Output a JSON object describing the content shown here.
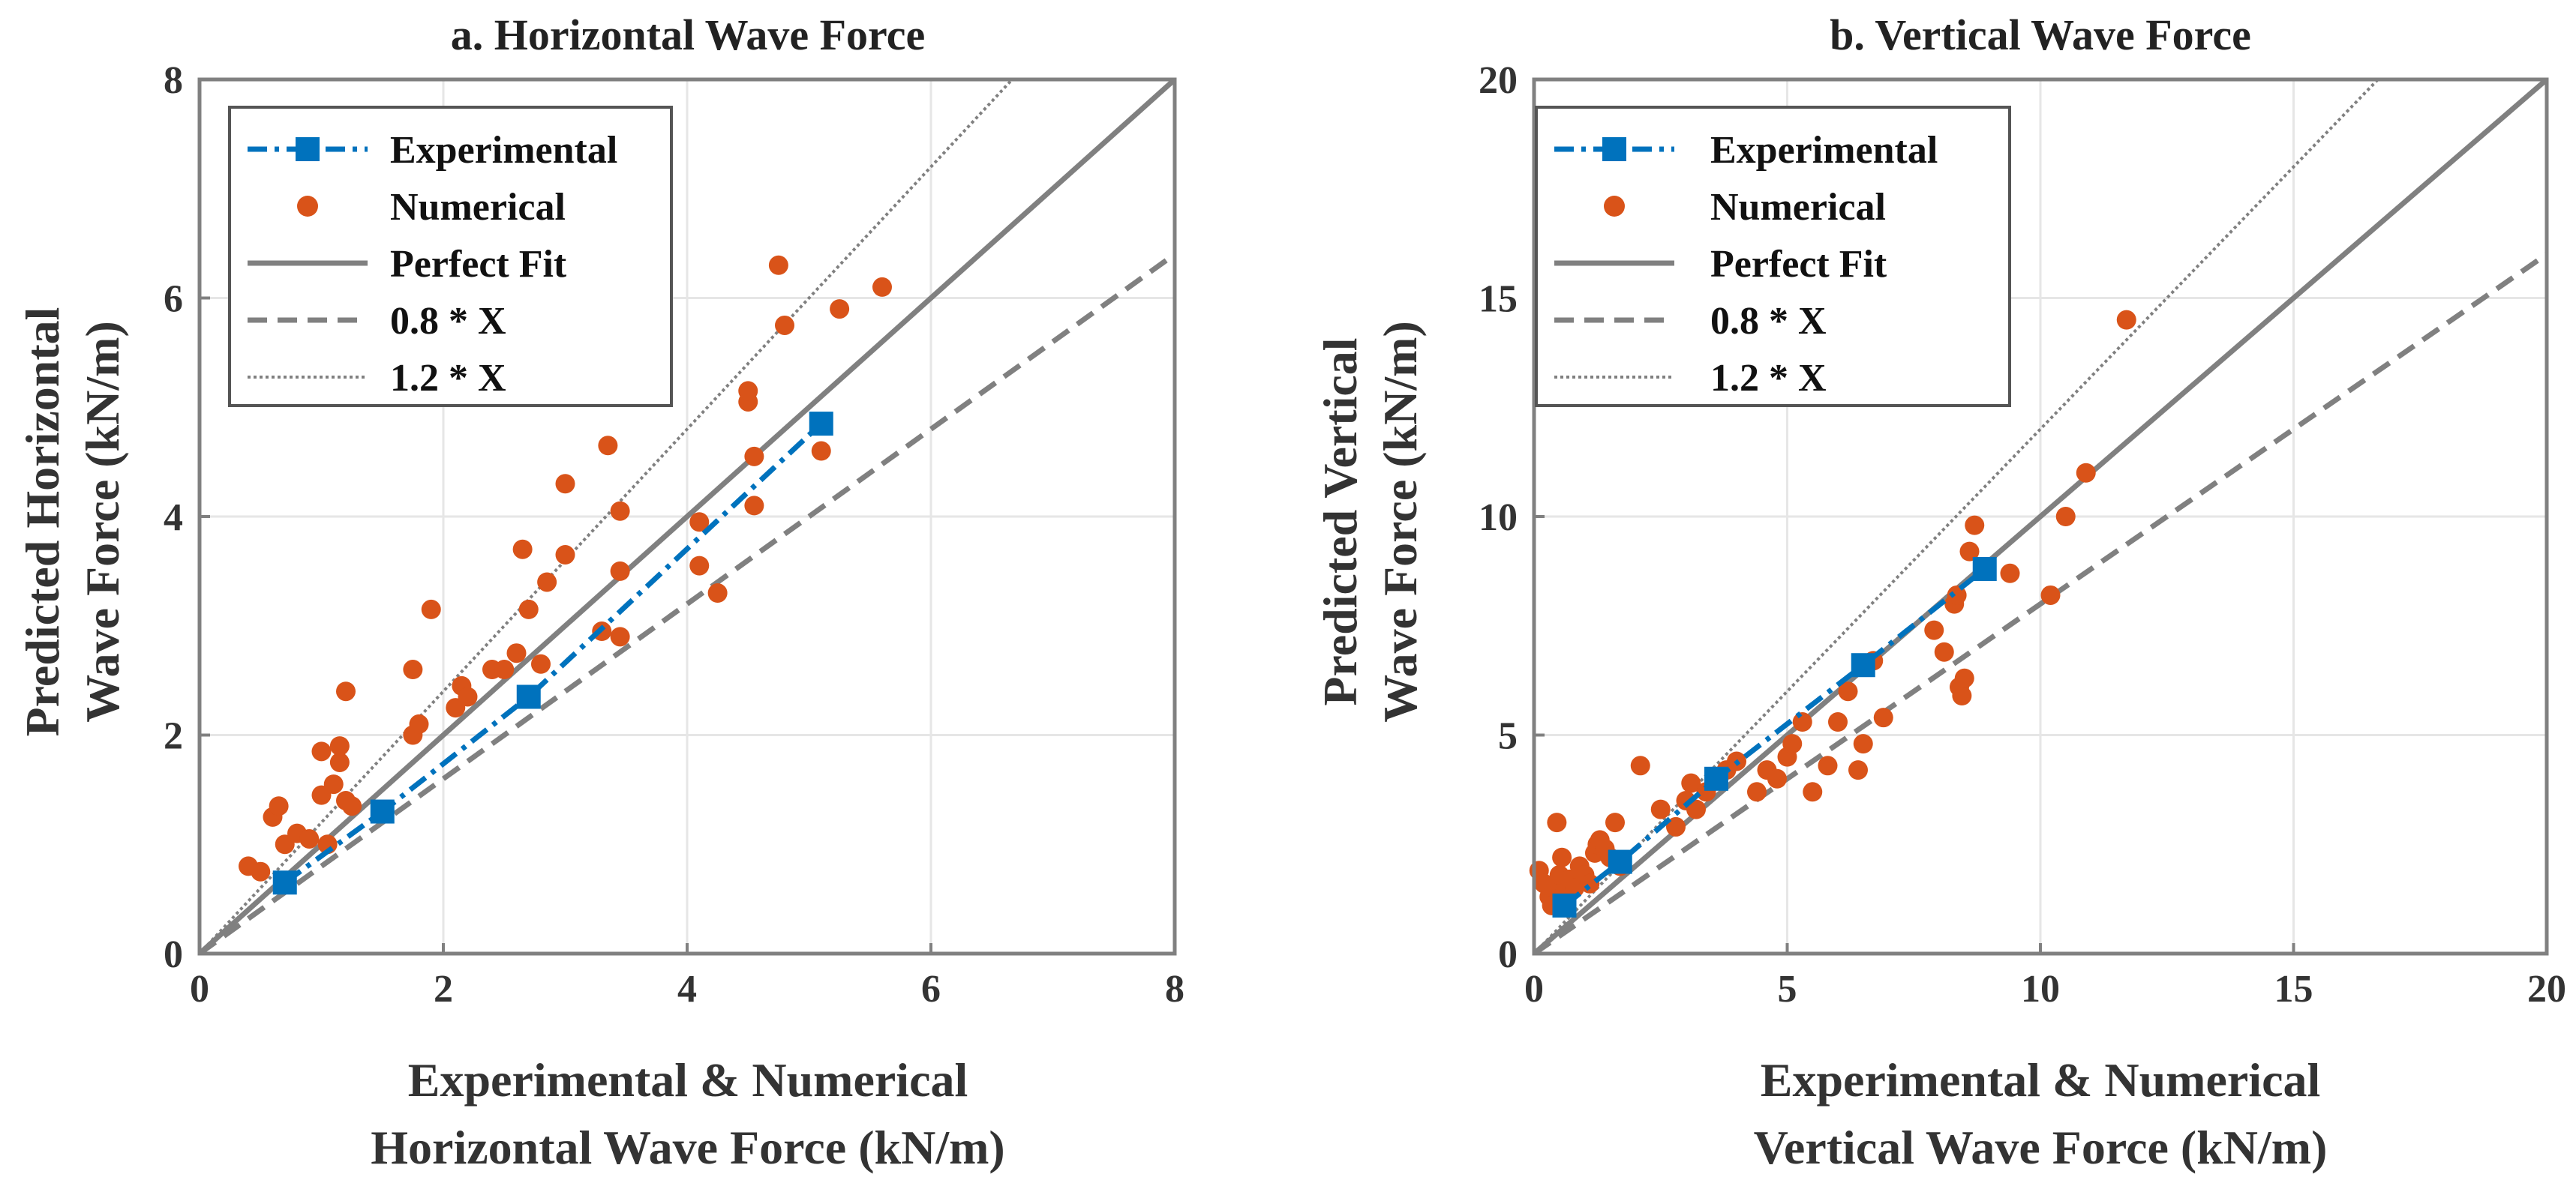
{
  "chart_data": [
    {
      "type": "scatter",
      "title": "a. Horizontal Wave Force",
      "xlabel": [
        "Experimental & Numerical",
        "Horizontal Wave Force (kN/m)"
      ],
      "ylabel": [
        "Predicted Horizontal",
        "Wave Force (kN/m)"
      ],
      "xlim": [
        0,
        8
      ],
      "ylim": [
        0,
        8
      ],
      "xticks": [
        0,
        2,
        4,
        6,
        8
      ],
      "yticks": [
        0,
        2,
        4,
        6,
        8
      ],
      "grid": true,
      "legend_position": "top-left",
      "legend": [
        "Experimental",
        "Numerical",
        "Perfect Fit",
        "0.8 * X",
        "1.2 * X"
      ],
      "colors": {
        "experimental": "#0072BD",
        "numerical": "#D95319",
        "fit": "#808080"
      },
      "experimental": {
        "x": [
          0.7,
          1.5,
          2.7,
          5.1
        ],
        "y": [
          0.65,
          1.3,
          2.35,
          4.85
        ]
      },
      "numerical": {
        "x": [
          0.4,
          0.5,
          0.6,
          0.65,
          0.7,
          0.8,
          0.9,
          1.0,
          1.0,
          1.05,
          1.1,
          1.15,
          1.15,
          1.2,
          1.2,
          1.25,
          1.75,
          1.75,
          1.8,
          1.9,
          2.1,
          2.15,
          2.2,
          2.4,
          2.5,
          2.6,
          2.65,
          2.7,
          2.8,
          2.85,
          3.0,
          3.0,
          3.3,
          3.35,
          3.45,
          3.45,
          3.45,
          4.1,
          4.1,
          4.25,
          4.5,
          4.5,
          4.55,
          4.55,
          4.75,
          4.8,
          5.1,
          5.25,
          5.6
        ],
        "y": [
          0.8,
          0.75,
          1.25,
          1.35,
          1.0,
          1.1,
          1.05,
          1.85,
          1.45,
          1.0,
          1.55,
          1.75,
          1.9,
          2.4,
          1.4,
          1.35,
          2.0,
          2.6,
          2.1,
          3.15,
          2.25,
          2.45,
          2.35,
          2.6,
          2.6,
          2.75,
          3.7,
          3.15,
          2.65,
          3.4,
          3.65,
          4.3,
          2.95,
          4.65,
          3.5,
          2.9,
          4.05,
          3.95,
          3.55,
          3.3,
          5.05,
          5.15,
          4.55,
          4.1,
          6.3,
          5.75,
          4.6,
          5.9,
          6.1
        ]
      }
    },
    {
      "type": "scatter",
      "title": "b. Vertical Wave Force",
      "xlabel": [
        "Experimental & Numerical",
        "Vertical Wave Force (kN/m)"
      ],
      "ylabel": [
        "Predicted Vertical",
        "Wave Force (kN/m)"
      ],
      "xlim": [
        0,
        20
      ],
      "ylim": [
        0,
        20
      ],
      "xticks": [
        0,
        5,
        10,
        15,
        20
      ],
      "yticks": [
        0,
        5,
        10,
        15,
        20
      ],
      "grid": true,
      "legend_position": "top-left",
      "legend": [
        "Experimental",
        "Numerical",
        "Perfect Fit",
        "0.8 * X",
        "1.2 * X"
      ],
      "colors": {
        "experimental": "#0072BD",
        "numerical": "#D95319",
        "fit": "#808080"
      },
      "experimental": {
        "x": [
          0.6,
          1.7,
          3.6,
          6.5,
          8.9
        ],
        "y": [
          1.1,
          2.1,
          4.0,
          6.6,
          8.8
        ]
      },
      "numerical": {
        "x": [
          0.1,
          0.2,
          0.3,
          0.35,
          0.4,
          0.45,
          0.5,
          0.55,
          0.6,
          0.7,
          0.8,
          0.9,
          1.0,
          1.1,
          1.2,
          1.25,
          1.3,
          1.4,
          1.5,
          1.6,
          1.7,
          2.1,
          2.5,
          2.8,
          3.0,
          3.1,
          3.2,
          3.4,
          3.6,
          3.8,
          4.0,
          4.4,
          4.6,
          4.8,
          5.0,
          5.1,
          5.3,
          5.5,
          5.8,
          6.0,
          6.2,
          6.4,
          6.5,
          6.7,
          6.9,
          7.9,
          8.1,
          8.3,
          8.35,
          8.4,
          8.45,
          8.5,
          8.6,
          8.7,
          9.4,
          10.2,
          10.5,
          10.9,
          11.7
        ],
        "y": [
          1.9,
          1.6,
          1.3,
          1.1,
          1.5,
          3.0,
          1.8,
          2.2,
          1.4,
          1.7,
          1.5,
          2.0,
          1.8,
          1.6,
          2.3,
          2.5,
          2.6,
          2.4,
          2.2,
          3.0,
          2.0,
          4.3,
          3.3,
          2.9,
          3.5,
          3.9,
          3.3,
          3.7,
          4.0,
          4.2,
          4.4,
          3.7,
          4.2,
          4.0,
          4.5,
          4.8,
          5.3,
          3.7,
          4.3,
          5.3,
          6.0,
          4.2,
          4.8,
          6.7,
          5.4,
          7.4,
          6.9,
          8.0,
          8.2,
          6.1,
          5.9,
          6.3,
          9.2,
          9.8,
          8.7,
          8.2,
          10.0,
          11.0,
          14.5
        ]
      }
    }
  ]
}
